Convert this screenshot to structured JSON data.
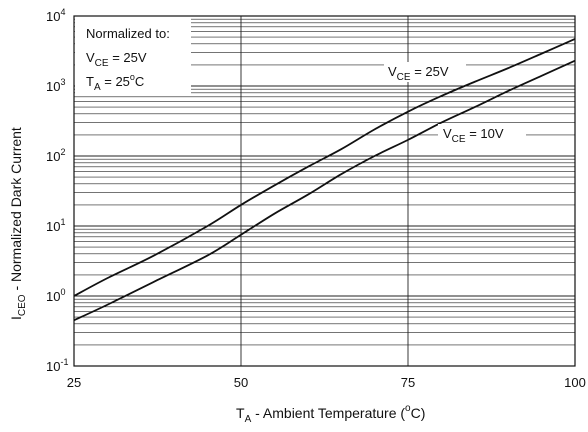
{
  "chart_data": {
    "type": "line",
    "xlabel": "T",
    "xlabel_sub": "A",
    "xlabel_rest": " - Ambient Temperature (",
    "xlabel_sup": "o",
    "xlabel_end": "C)",
    "ylabel": "I",
    "ylabel_sub": "CEO",
    "ylabel_rest": " - Normalized Dark Current",
    "x_ticks": [
      "25",
      "50",
      "75",
      "100"
    ],
    "y_ticks": [
      {
        "base": "10",
        "exp": "-1"
      },
      {
        "base": "10",
        "exp": "0"
      },
      {
        "base": "10",
        "exp": "1"
      },
      {
        "base": "10",
        "exp": "2"
      },
      {
        "base": "10",
        "exp": "3"
      },
      {
        "base": "10",
        "exp": "4"
      }
    ],
    "xlim": [
      25,
      100
    ],
    "ylim": [
      0.1,
      10000
    ],
    "y_scale": "log",
    "grid": true,
    "series": [
      {
        "name": "V_CE = 25V",
        "label_main": "V",
        "label_sub": "CE",
        "label_rest": " = 25V",
        "x": [
          25,
          30,
          37,
          45,
          50,
          55,
          60,
          65,
          70,
          75,
          80,
          85,
          90,
          95,
          100
        ],
        "y": [
          1.0,
          1.8,
          3.8,
          10,
          20,
          38,
          70,
          125,
          240,
          430,
          720,
          1150,
          1800,
          2900,
          4700
        ]
      },
      {
        "name": "V_CE = 10V",
        "label_main": "V",
        "label_sub": "CE",
        "label_rest": " = 10V",
        "x": [
          25,
          30,
          37,
          45,
          50,
          55,
          60,
          65,
          70,
          75,
          80,
          85,
          90,
          95,
          100
        ],
        "y": [
          0.45,
          0.75,
          1.6,
          3.8,
          7.5,
          15,
          28,
          55,
          100,
          170,
          300,
          500,
          850,
          1400,
          2300
        ]
      }
    ],
    "annotation": {
      "line1": "Normalized to:",
      "line2_main": "V",
      "line2_sub": "CE",
      "line2_rest": " = 25V",
      "line3_main": "T",
      "line3_sub": "A",
      "line3_rest": " = 25",
      "line3_sup": "o",
      "line3_end": "C"
    }
  }
}
